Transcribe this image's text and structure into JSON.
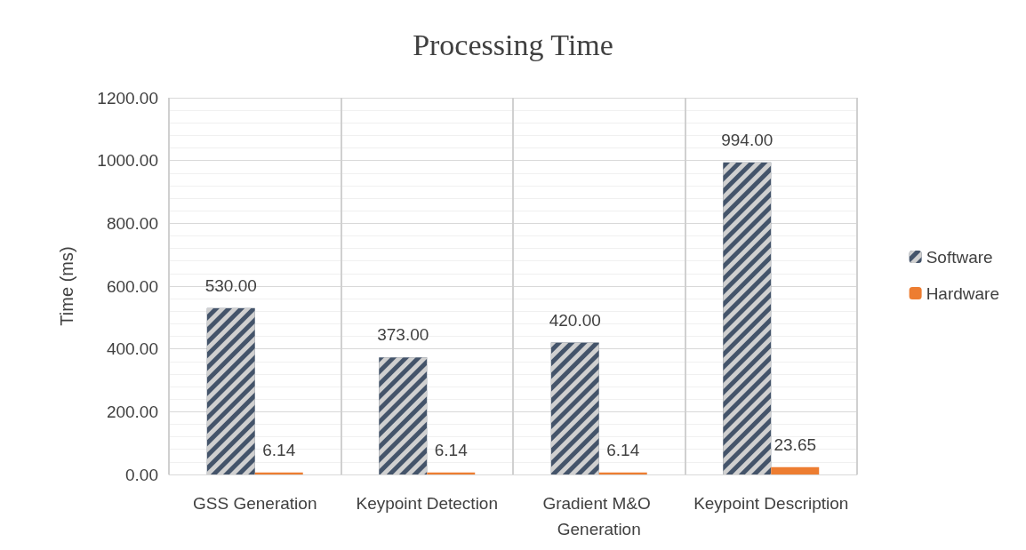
{
  "chart_data": {
    "type": "bar",
    "title": "Processing Time",
    "ylabel": "Time (ms)",
    "categories": [
      "GSS Generation",
      "Keypoint Detection",
      "Gradient M&O Generation",
      "Keypoint Description"
    ],
    "series": [
      {
        "name": "Software",
        "color": "#44546a",
        "values": [
          530,
          373,
          420,
          994
        ],
        "value_labels": [
          "530.00",
          "373.00",
          "420.00",
          "994.00"
        ]
      },
      {
        "name": "Hardware",
        "color": "#ed7d31",
        "values": [
          6.14,
          6.14,
          6.14,
          23.65
        ],
        "value_labels": [
          "6.14",
          "6.14",
          "6.14",
          "23.65"
        ]
      }
    ],
    "ylim": [
      0,
      1200
    ],
    "yticks": [
      {
        "value": 0,
        "label": "0.00"
      },
      {
        "value": 200,
        "label": "200.00"
      },
      {
        "value": 400,
        "label": "400.00"
      },
      {
        "value": 600,
        "label": "600.00"
      },
      {
        "value": 800,
        "label": "800.00"
      },
      {
        "value": 1000,
        "label": "1000.00"
      },
      {
        "value": 1200,
        "label": "1200.00"
      }
    ],
    "grid": true,
    "legend": "right"
  }
}
